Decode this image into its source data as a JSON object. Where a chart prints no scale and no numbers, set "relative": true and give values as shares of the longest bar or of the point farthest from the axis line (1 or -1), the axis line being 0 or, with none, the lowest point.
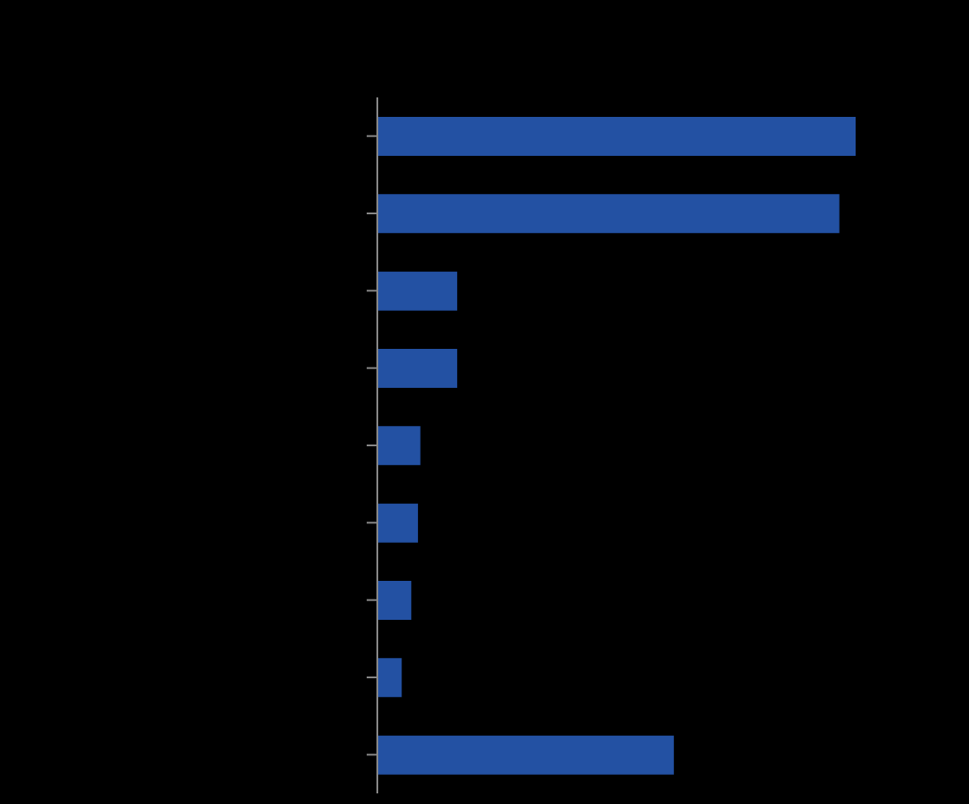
{
  "chart_data": {
    "type": "bar",
    "orientation": "horizontal",
    "relative": true,
    "categories": [
      null,
      null,
      null,
      null,
      null,
      null,
      null,
      null,
      null
    ],
    "values": [
      1,
      0.966,
      0.167,
      0.167,
      0.09,
      0.085,
      0.071,
      0.051,
      0.62
    ],
    "color": "#2351a3"
  }
}
